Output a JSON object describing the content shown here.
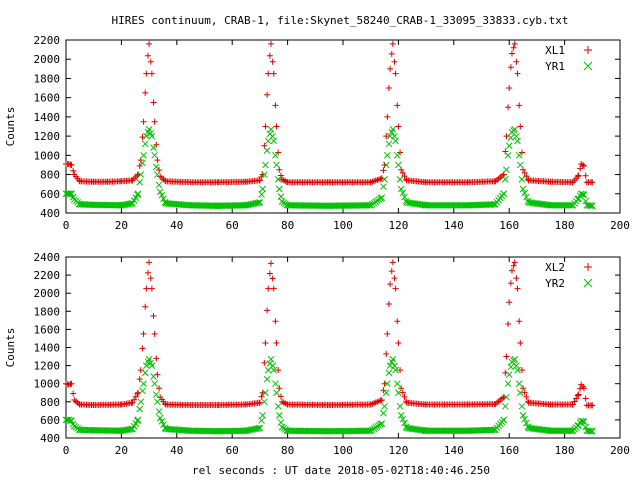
{
  "title": "HIRES continuum, CRAB-1, file:Skynet_58240_CRAB-1_33095_33833.cyb.txt",
  "xlabel": "rel seconds : UT date 2018-05-02T18:40:46.250",
  "colors": {
    "red": "#e00000",
    "green": "#00c000"
  },
  "chart_data": [
    {
      "type": "scatter",
      "ylabel": "Counts",
      "xlim": [
        0,
        200
      ],
      "ylim": [
        400,
        2200
      ],
      "x_ticks": [
        0,
        20,
        40,
        60,
        80,
        100,
        120,
        140,
        160,
        180,
        200
      ],
      "x_tick_labels": [
        "0",
        "20",
        "40",
        "60",
        "80",
        "100",
        "120",
        "140",
        "160",
        "180",
        "200"
      ],
      "y_ticks": [
        400,
        600,
        800,
        1000,
        1200,
        1400,
        1600,
        1800,
        2000,
        2200
      ],
      "y_tick_labels": [
        "400",
        "600",
        "800",
        "1000",
        "1200",
        "1400",
        "1600",
        "1800",
        "2000",
        "2200"
      ],
      "legend_position": "top-right",
      "series": [
        {
          "name": "XL1",
          "marker": "plus",
          "color": "#e00000",
          "points": [
            [
              0,
              910
            ],
            [
              1,
              910
            ],
            [
              2,
              900
            ],
            [
              3,
              800
            ],
            [
              5,
              730
            ],
            [
              10,
              725
            ],
            [
              15,
              725
            ],
            [
              20,
              730
            ],
            [
              24,
              740
            ],
            [
              26,
              800
            ],
            [
              27,
              950
            ],
            [
              28,
              1350
            ],
            [
              29,
              1850
            ],
            [
              30,
              2160
            ],
            [
              31,
              1850
            ],
            [
              32,
              1350
            ],
            [
              33,
              950
            ],
            [
              34,
              780
            ],
            [
              36,
              730
            ],
            [
              45,
              720
            ],
            [
              55,
              720
            ],
            [
              65,
              725
            ],
            [
              70,
              740
            ],
            [
              71,
              800
            ],
            [
              72,
              1300
            ],
            [
              73,
              1850
            ],
            [
              74,
              2160
            ],
            [
              75,
              1850
            ],
            [
              76,
              1300
            ],
            [
              77,
              850
            ],
            [
              78,
              750
            ],
            [
              80,
              720
            ],
            [
              95,
              720
            ],
            [
              110,
              720
            ],
            [
              114,
              760
            ],
            [
              115,
              900
            ],
            [
              116,
              1400
            ],
            [
              117,
              1900
            ],
            [
              118,
              2160
            ],
            [
              119,
              1850
            ],
            [
              120,
              1300
            ],
            [
              121,
              850
            ],
            [
              123,
              740
            ],
            [
              130,
              720
            ],
            [
              145,
              720
            ],
            [
              155,
              730
            ],
            [
              158,
              800
            ],
            [
              159,
              1200
            ],
            [
              160,
              1700
            ],
            [
              161,
              2060
            ],
            [
              162,
              2160
            ],
            [
              163,
              1850
            ],
            [
              164,
              1300
            ],
            [
              165,
              850
            ],
            [
              167,
              740
            ],
            [
              175,
              725
            ],
            [
              183,
              720
            ],
            [
              185,
              790
            ],
            [
              186,
              910
            ],
            [
              187,
              890
            ],
            [
              188,
              720
            ],
            [
              190,
              720
            ]
          ]
        },
        {
          "name": "YR1",
          "marker": "cross",
          "color": "#00c000",
          "points": [
            [
              0,
              600
            ],
            [
              1,
              600
            ],
            [
              2,
              600
            ],
            [
              3,
              540
            ],
            [
              5,
              490
            ],
            [
              10,
              485
            ],
            [
              20,
              480
            ],
            [
              24,
              500
            ],
            [
              26,
              600
            ],
            [
              27,
              800
            ],
            [
              28,
              1000
            ],
            [
              29,
              1200
            ],
            [
              30,
              1270
            ],
            [
              31,
              1200
            ],
            [
              32,
              1000
            ],
            [
              33,
              800
            ],
            [
              34,
              620
            ],
            [
              36,
              500
            ],
            [
              45,
              480
            ],
            [
              55,
              475
            ],
            [
              65,
              480
            ],
            [
              70,
              510
            ],
            [
              71,
              650
            ],
            [
              72,
              900
            ],
            [
              73,
              1150
            ],
            [
              74,
              1270
            ],
            [
              75,
              1150
            ],
            [
              76,
              900
            ],
            [
              77,
              650
            ],
            [
              78,
              520
            ],
            [
              80,
              480
            ],
            [
              95,
              475
            ],
            [
              110,
              480
            ],
            [
              114,
              560
            ],
            [
              115,
              750
            ],
            [
              116,
              1000
            ],
            [
              117,
              1200
            ],
            [
              118,
              1270
            ],
            [
              119,
              1150
            ],
            [
              120,
              900
            ],
            [
              121,
              650
            ],
            [
              123,
              510
            ],
            [
              130,
              480
            ],
            [
              145,
              480
            ],
            [
              155,
              490
            ],
            [
              158,
              600
            ],
            [
              159,
              850
            ],
            [
              160,
              1100
            ],
            [
              161,
              1240
            ],
            [
              162,
              1270
            ],
            [
              163,
              1150
            ],
            [
              164,
              900
            ],
            [
              165,
              650
            ],
            [
              167,
              510
            ],
            [
              175,
              480
            ],
            [
              183,
              480
            ],
            [
              185,
              550
            ],
            [
              186,
              600
            ],
            [
              187,
              590
            ],
            [
              188,
              480
            ],
            [
              190,
              475
            ]
          ]
        }
      ]
    },
    {
      "type": "scatter",
      "ylabel": "Counts",
      "xlim": [
        0,
        200
      ],
      "ylim": [
        400,
        2400
      ],
      "x_ticks": [
        0,
        20,
        40,
        60,
        80,
        100,
        120,
        140,
        160,
        180,
        200
      ],
      "x_tick_labels": [
        "0",
        "20",
        "40",
        "60",
        "80",
        "100",
        "120",
        "140",
        "160",
        "180",
        "200"
      ],
      "y_ticks": [
        400,
        600,
        800,
        1000,
        1200,
        1400,
        1600,
        1800,
        2000,
        2200,
        2400
      ],
      "y_tick_labels": [
        "400",
        "600",
        "800",
        "1000",
        "1200",
        "1400",
        "1600",
        "1800",
        "2000",
        "2200",
        "2400"
      ],
      "legend_position": "top-right",
      "series": [
        {
          "name": "XL2",
          "marker": "plus",
          "color": "#e00000",
          "points": [
            [
              0,
              1000
            ],
            [
              1,
              990
            ],
            [
              2,
              1000
            ],
            [
              3,
              820
            ],
            [
              5,
              770
            ],
            [
              10,
              765
            ],
            [
              20,
              770
            ],
            [
              24,
              790
            ],
            [
              26,
              900
            ],
            [
              27,
              1150
            ],
            [
              28,
              1550
            ],
            [
              29,
              2050
            ],
            [
              30,
              2340
            ],
            [
              31,
              2050
            ],
            [
              32,
              1550
            ],
            [
              33,
              1100
            ],
            [
              34,
              850
            ],
            [
              36,
              770
            ],
            [
              45,
              765
            ],
            [
              55,
              765
            ],
            [
              65,
              770
            ],
            [
              70,
              790
            ],
            [
              71,
              900
            ],
            [
              72,
              1450
            ],
            [
              73,
              2050
            ],
            [
              74,
              2330
            ],
            [
              75,
              2050
            ],
            [
              76,
              1450
            ],
            [
              77,
              950
            ],
            [
              78,
              800
            ],
            [
              80,
              770
            ],
            [
              95,
              765
            ],
            [
              110,
              770
            ],
            [
              114,
              820
            ],
            [
              115,
              1000
            ],
            [
              116,
              1550
            ],
            [
              117,
              2100
            ],
            [
              118,
              2340
            ],
            [
              119,
              2050
            ],
            [
              120,
              1450
            ],
            [
              121,
              950
            ],
            [
              123,
              790
            ],
            [
              130,
              770
            ],
            [
              145,
              770
            ],
            [
              155,
              775
            ],
            [
              158,
              850
            ],
            [
              159,
              1300
            ],
            [
              160,
              1900
            ],
            [
              161,
              2250
            ],
            [
              162,
              2340
            ],
            [
              163,
              2050
            ],
            [
              164,
              1450
            ],
            [
              165,
              950
            ],
            [
              167,
              790
            ],
            [
              175,
              770
            ],
            [
              183,
              770
            ],
            [
              185,
              880
            ],
            [
              186,
              990
            ],
            [
              187,
              950
            ],
            [
              188,
              760
            ],
            [
              190,
              760
            ]
          ]
        },
        {
          "name": "YR2",
          "marker": "cross",
          "color": "#00c000",
          "points": [
            [
              0,
              600
            ],
            [
              1,
              600
            ],
            [
              2,
              590
            ],
            [
              3,
              530
            ],
            [
              5,
              490
            ],
            [
              10,
              485
            ],
            [
              20,
              480
            ],
            [
              24,
              500
            ],
            [
              26,
              600
            ],
            [
              27,
              800
            ],
            [
              28,
              1000
            ],
            [
              29,
              1200
            ],
            [
              30,
              1270
            ],
            [
              31,
              1200
            ],
            [
              32,
              1000
            ],
            [
              33,
              800
            ],
            [
              34,
              620
            ],
            [
              36,
              500
            ],
            [
              45,
              480
            ],
            [
              55,
              475
            ],
            [
              65,
              480
            ],
            [
              70,
              510
            ],
            [
              71,
              650
            ],
            [
              72,
              900
            ],
            [
              73,
              1150
            ],
            [
              74,
              1270
            ],
            [
              75,
              1150
            ],
            [
              76,
              900
            ],
            [
              77,
              650
            ],
            [
              78,
              520
            ],
            [
              80,
              480
            ],
            [
              95,
              475
            ],
            [
              110,
              480
            ],
            [
              114,
              560
            ],
            [
              115,
              750
            ],
            [
              116,
              1000
            ],
            [
              117,
              1200
            ],
            [
              118,
              1270
            ],
            [
              119,
              1150
            ],
            [
              120,
              900
            ],
            [
              121,
              650
            ],
            [
              123,
              510
            ],
            [
              130,
              480
            ],
            [
              145,
              480
            ],
            [
              155,
              490
            ],
            [
              158,
              600
            ],
            [
              159,
              850
            ],
            [
              160,
              1100
            ],
            [
              161,
              1240
            ],
            [
              162,
              1270
            ],
            [
              163,
              1150
            ],
            [
              164,
              900
            ],
            [
              165,
              650
            ],
            [
              167,
              510
            ],
            [
              175,
              480
            ],
            [
              183,
              480
            ],
            [
              185,
              540
            ],
            [
              186,
              590
            ],
            [
              187,
              580
            ],
            [
              188,
              480
            ],
            [
              190,
              475
            ]
          ]
        }
      ]
    }
  ]
}
